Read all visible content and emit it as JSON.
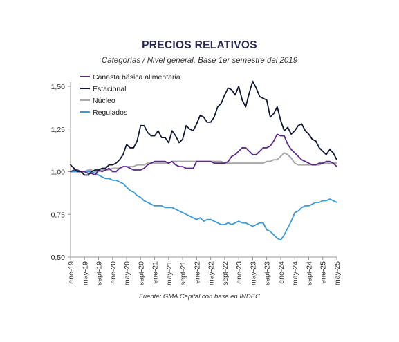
{
  "chart_data": {
    "type": "line",
    "title": "PRECIOS RELATIVOS",
    "subtitle": "Categorías / Nivel general. Base 1er semestre del 2019",
    "source": "Fuente: GMA Capital con base en INDEC",
    "xlabel": "",
    "ylabel": "",
    "ylim": [
      0.5,
      1.5
    ],
    "yticks": [
      "0,50",
      "0,75",
      "1,00",
      "1,25",
      "1,50"
    ],
    "x_tick_labels": [
      "ene-19",
      "may-19",
      "sept-19",
      "ene-20",
      "may-20",
      "sept-20",
      "ene-21",
      "may-21",
      "sept-21",
      "ene-22",
      "may-22",
      "sept-22",
      "ene-23",
      "may-23",
      "sept-23",
      "ene-24",
      "may-24",
      "sept-24",
      "ene-25",
      "may-25"
    ],
    "x": [
      "ene-19",
      "feb-19",
      "mar-19",
      "abr-19",
      "may-19",
      "jun-19",
      "jul-19",
      "ago-19",
      "sept-19",
      "oct-19",
      "nov-19",
      "dic-19",
      "ene-20",
      "feb-20",
      "mar-20",
      "abr-20",
      "may-20",
      "jun-20",
      "jul-20",
      "ago-20",
      "sept-20",
      "oct-20",
      "nov-20",
      "dic-20",
      "ene-21",
      "feb-21",
      "mar-21",
      "abr-21",
      "may-21",
      "jun-21",
      "jul-21",
      "ago-21",
      "sept-21",
      "oct-21",
      "nov-21",
      "dic-21",
      "ene-22",
      "feb-22",
      "mar-22",
      "abr-22",
      "may-22",
      "jun-22",
      "jul-22",
      "ago-22",
      "sept-22",
      "oct-22",
      "nov-22",
      "dic-22",
      "ene-23",
      "feb-23",
      "mar-23",
      "abr-23",
      "may-23",
      "jun-23",
      "jul-23",
      "ago-23",
      "sept-23",
      "oct-23",
      "nov-23",
      "dic-23",
      "ene-24",
      "feb-24",
      "mar-24",
      "abr-24",
      "may-24",
      "jun-24",
      "jul-24",
      "ago-24",
      "sept-24",
      "oct-24",
      "nov-24",
      "dic-24",
      "ene-25",
      "feb-25",
      "mar-25",
      "abr-25",
      "may-25"
    ],
    "grid": false,
    "legend_placement": "top-left",
    "series": [
      {
        "name": "Canasta básica alimentaria",
        "color": "#5b2a86",
        "values": [
          1.0,
          1.01,
          1.01,
          1.0,
          1.0,
          0.99,
          0.99,
          0.98,
          1.01,
          1.0,
          1.01,
          1.02,
          1.0,
          1.0,
          1.02,
          1.03,
          1.03,
          1.02,
          1.01,
          1.01,
          1.01,
          1.02,
          1.04,
          1.05,
          1.06,
          1.06,
          1.06,
          1.06,
          1.05,
          1.06,
          1.04,
          1.03,
          1.03,
          1.02,
          1.02,
          1.02,
          1.06,
          1.06,
          1.06,
          1.06,
          1.06,
          1.05,
          1.05,
          1.05,
          1.05,
          1.06,
          1.09,
          1.1,
          1.12,
          1.14,
          1.14,
          1.12,
          1.1,
          1.1,
          1.12,
          1.14,
          1.14,
          1.15,
          1.18,
          1.22,
          1.21,
          1.21,
          1.16,
          1.13,
          1.11,
          1.09,
          1.07,
          1.06,
          1.05,
          1.04,
          1.04,
          1.05,
          1.05,
          1.06,
          1.06,
          1.05,
          1.03
        ]
      },
      {
        "name": "Estacional",
        "color": "#111833",
        "values": [
          1.04,
          1.02,
          1.0,
          1.0,
          0.98,
          0.98,
          1.0,
          1.01,
          1.01,
          1.02,
          1.02,
          1.04,
          1.04,
          1.05,
          1.07,
          1.1,
          1.16,
          1.14,
          1.14,
          1.18,
          1.27,
          1.27,
          1.23,
          1.21,
          1.21,
          1.24,
          1.2,
          1.2,
          1.17,
          1.24,
          1.21,
          1.17,
          1.19,
          1.27,
          1.25,
          1.24,
          1.28,
          1.33,
          1.32,
          1.29,
          1.29,
          1.32,
          1.38,
          1.4,
          1.45,
          1.49,
          1.48,
          1.45,
          1.5,
          1.42,
          1.38,
          1.46,
          1.53,
          1.49,
          1.44,
          1.43,
          1.42,
          1.32,
          1.34,
          1.38,
          1.3,
          1.24,
          1.26,
          1.22,
          1.24,
          1.27,
          1.28,
          1.24,
          1.22,
          1.19,
          1.18,
          1.14,
          1.12,
          1.1,
          1.13,
          1.11,
          1.07
        ]
      },
      {
        "name": "Núcleo",
        "color": "#a9a9a9",
        "values": [
          1.0,
          1.0,
          1.0,
          1.0,
          1.0,
          1.01,
          1.01,
          1.0,
          1.0,
          1.01,
          1.01,
          1.01,
          1.02,
          1.02,
          1.02,
          1.03,
          1.03,
          1.03,
          1.03,
          1.04,
          1.04,
          1.04,
          1.05,
          1.05,
          1.05,
          1.05,
          1.05,
          1.05,
          1.05,
          1.06,
          1.06,
          1.06,
          1.06,
          1.06,
          1.06,
          1.06,
          1.06,
          1.06,
          1.06,
          1.06,
          1.06,
          1.06,
          1.06,
          1.06,
          1.05,
          1.05,
          1.05,
          1.05,
          1.05,
          1.05,
          1.05,
          1.05,
          1.05,
          1.05,
          1.05,
          1.05,
          1.06,
          1.06,
          1.07,
          1.07,
          1.09,
          1.11,
          1.1,
          1.08,
          1.05,
          1.04,
          1.04,
          1.04,
          1.04,
          1.04,
          1.04,
          1.04,
          1.05,
          1.05,
          1.05,
          1.05,
          1.05
        ]
      },
      {
        "name": "Regulados",
        "color": "#3a9ad9",
        "values": [
          1.0,
          1.0,
          1.0,
          1.0,
          1.0,
          1.0,
          1.0,
          0.99,
          0.98,
          0.97,
          0.96,
          0.96,
          0.95,
          0.95,
          0.94,
          0.93,
          0.91,
          0.89,
          0.88,
          0.86,
          0.85,
          0.83,
          0.82,
          0.81,
          0.8,
          0.8,
          0.8,
          0.79,
          0.79,
          0.79,
          0.78,
          0.77,
          0.76,
          0.75,
          0.74,
          0.73,
          0.72,
          0.73,
          0.71,
          0.72,
          0.72,
          0.71,
          0.7,
          0.69,
          0.69,
          0.7,
          0.69,
          0.7,
          0.71,
          0.7,
          0.7,
          0.69,
          0.68,
          0.69,
          0.7,
          0.7,
          0.66,
          0.65,
          0.63,
          0.61,
          0.6,
          0.63,
          0.67,
          0.71,
          0.76,
          0.77,
          0.79,
          0.8,
          0.8,
          0.81,
          0.82,
          0.82,
          0.83,
          0.83,
          0.84,
          0.83,
          0.82
        ]
      }
    ]
  }
}
